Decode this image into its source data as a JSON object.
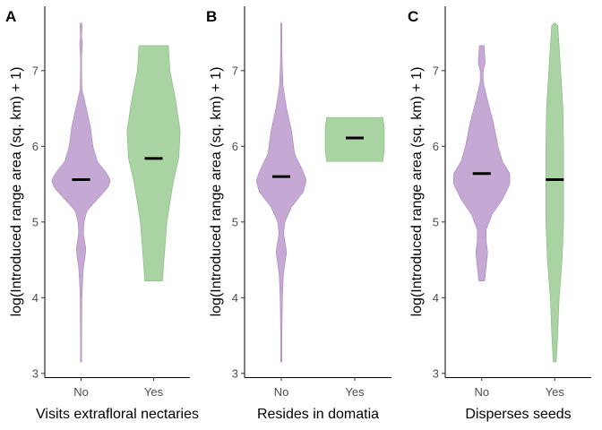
{
  "colors": {
    "No": "#c5a8d3",
    "No_stroke": "#a987bc",
    "Yes": "#a9d3a2",
    "Yes_stroke": "#85bb7d"
  },
  "chart_data": [
    {
      "type": "violin",
      "panel": "A",
      "xlabel": "Visits extrafloral nectaries",
      "ylabel": "log(Introduced range area (sq. km) + 1)",
      "ylim": [
        2.95,
        7.85
      ],
      "yticks": [
        3,
        4,
        5,
        6,
        7
      ],
      "categories": [
        "No",
        "Yes"
      ],
      "groups": [
        {
          "name": "No",
          "median": 5.56,
          "min": 3.15,
          "max": 7.63,
          "profile": [
            [
              3.15,
              0.02
            ],
            [
              3.5,
              0.02
            ],
            [
              4.0,
              0.03
            ],
            [
              4.2,
              0.05
            ],
            [
              4.4,
              0.08
            ],
            [
              4.55,
              0.14
            ],
            [
              4.65,
              0.16
            ],
            [
              4.75,
              0.12
            ],
            [
              4.85,
              0.08
            ],
            [
              5.0,
              0.1
            ],
            [
              5.15,
              0.2
            ],
            [
              5.3,
              0.55
            ],
            [
              5.45,
              0.9
            ],
            [
              5.55,
              1.0
            ],
            [
              5.65,
              0.85
            ],
            [
              5.8,
              0.55
            ],
            [
              6.0,
              0.4
            ],
            [
              6.25,
              0.32
            ],
            [
              6.5,
              0.18
            ],
            [
              6.75,
              0.03
            ],
            [
              7.0,
              0.02
            ],
            [
              7.2,
              0.02
            ],
            [
              7.35,
              0.05
            ],
            [
              7.45,
              0.02
            ],
            [
              7.63,
              0.04
            ]
          ]
        },
        {
          "name": "Yes",
          "median": 5.84,
          "min": 4.22,
          "max": 7.33,
          "profile": [
            [
              4.22,
              0.3
            ],
            [
              4.5,
              0.35
            ],
            [
              5.0,
              0.45
            ],
            [
              5.5,
              0.65
            ],
            [
              5.84,
              0.85
            ],
            [
              6.2,
              0.9
            ],
            [
              6.6,
              0.75
            ],
            [
              7.0,
              0.55
            ],
            [
              7.33,
              0.5
            ]
          ]
        }
      ]
    },
    {
      "type": "violin",
      "panel": "B",
      "xlabel": "Resides in domatia",
      "ylabel": "log(Introduced range area (sq. km) + 1)",
      "ylim": [
        2.95,
        7.85
      ],
      "yticks": [
        3,
        4,
        5,
        6,
        7
      ],
      "categories": [
        "No",
        "Yes"
      ],
      "groups": [
        {
          "name": "No",
          "median": 5.6,
          "min": 3.15,
          "max": 7.63,
          "profile": [
            [
              3.15,
              0.02
            ],
            [
              3.5,
              0.02
            ],
            [
              4.0,
              0.04
            ],
            [
              4.3,
              0.07
            ],
            [
              4.5,
              0.14
            ],
            [
              4.6,
              0.18
            ],
            [
              4.7,
              0.14
            ],
            [
              4.85,
              0.08
            ],
            [
              5.0,
              0.12
            ],
            [
              5.2,
              0.35
            ],
            [
              5.4,
              0.75
            ],
            [
              5.55,
              0.85
            ],
            [
              5.7,
              0.7
            ],
            [
              5.9,
              0.45
            ],
            [
              6.2,
              0.35
            ],
            [
              6.5,
              0.18
            ],
            [
              6.8,
              0.06
            ],
            [
              7.1,
              0.03
            ],
            [
              7.4,
              0.02
            ],
            [
              7.63,
              0.02
            ]
          ]
        },
        {
          "name": "Yes",
          "median": 6.11,
          "min": 5.8,
          "max": 6.38,
          "profile": [
            [
              5.8,
              0.95
            ],
            [
              5.95,
              1.0
            ],
            [
              6.11,
              1.0
            ],
            [
              6.25,
              1.0
            ],
            [
              6.38,
              0.95
            ]
          ]
        }
      ]
    },
    {
      "type": "violin",
      "panel": "C",
      "xlabel": "Disperses seeds",
      "ylabel": "log(Introduced range area (sq. km) + 1)",
      "ylim": [
        2.95,
        7.85
      ],
      "yticks": [
        3,
        4,
        5,
        6,
        7
      ],
      "categories": [
        "No",
        "Yes"
      ],
      "groups": [
        {
          "name": "No",
          "median": 5.64,
          "min": 4.22,
          "max": 7.33,
          "profile": [
            [
              4.22,
              0.1
            ],
            [
              4.4,
              0.15
            ],
            [
              4.6,
              0.2
            ],
            [
              4.75,
              0.15
            ],
            [
              4.9,
              0.15
            ],
            [
              5.1,
              0.35
            ],
            [
              5.3,
              0.7
            ],
            [
              5.5,
              0.95
            ],
            [
              5.64,
              0.95
            ],
            [
              5.8,
              0.7
            ],
            [
              6.0,
              0.55
            ],
            [
              6.3,
              0.4
            ],
            [
              6.6,
              0.2
            ],
            [
              6.85,
              0.05
            ],
            [
              7.0,
              0.05
            ],
            [
              7.1,
              0.12
            ],
            [
              7.33,
              0.08
            ]
          ]
        },
        {
          "name": "Yes",
          "median": 5.56,
          "min": 3.15,
          "max": 7.63,
          "profile": [
            [
              3.15,
              0.05
            ],
            [
              3.5,
              0.1
            ],
            [
              4.0,
              0.15
            ],
            [
              4.5,
              0.25
            ],
            [
              5.0,
              0.3
            ],
            [
              5.56,
              0.3
            ],
            [
              6.0,
              0.3
            ],
            [
              6.5,
              0.28
            ],
            [
              7.0,
              0.2
            ],
            [
              7.5,
              0.12
            ],
            [
              7.63,
              0.1
            ]
          ]
        }
      ]
    }
  ]
}
